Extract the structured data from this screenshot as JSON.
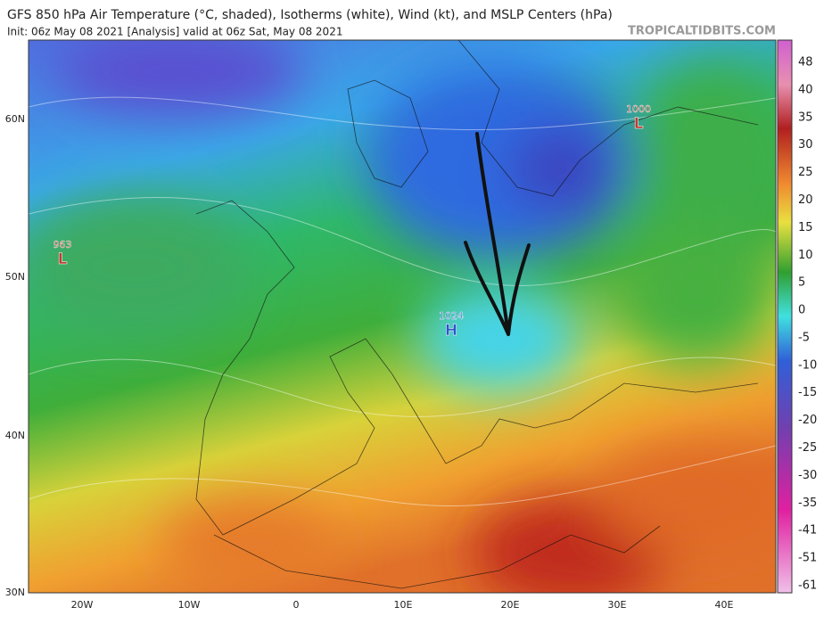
{
  "header": {
    "title": "GFS 850 hPa Air Temperature (°C, shaded), Isotherms (white), Wind (kt), and MSLP Centers (hPa)",
    "init": "Init: 06z May 08 2021   [Analysis]   valid at 06z Sat, May 08 2021",
    "site": "TROPICALTIDBITS.COM"
  },
  "map": {
    "latitude_labels": [
      "60N",
      "50N",
      "40N",
      "30N"
    ],
    "longitude_labels": [
      "20W",
      "10W",
      "0",
      "10E",
      "20E",
      "30E",
      "40E"
    ],
    "pressure_centers": [
      {
        "value": "963",
        "letter": "L"
      },
      {
        "value": "1024",
        "letter": "H"
      },
      {
        "value": "1000",
        "letter": "L"
      }
    ]
  },
  "colorbar": {
    "labels": [
      48,
      40,
      35,
      30,
      25,
      20,
      15,
      10,
      5,
      0,
      -5,
      -10,
      -15,
      -20,
      -25,
      -30,
      -35,
      -41,
      -51,
      -61
    ]
  }
}
